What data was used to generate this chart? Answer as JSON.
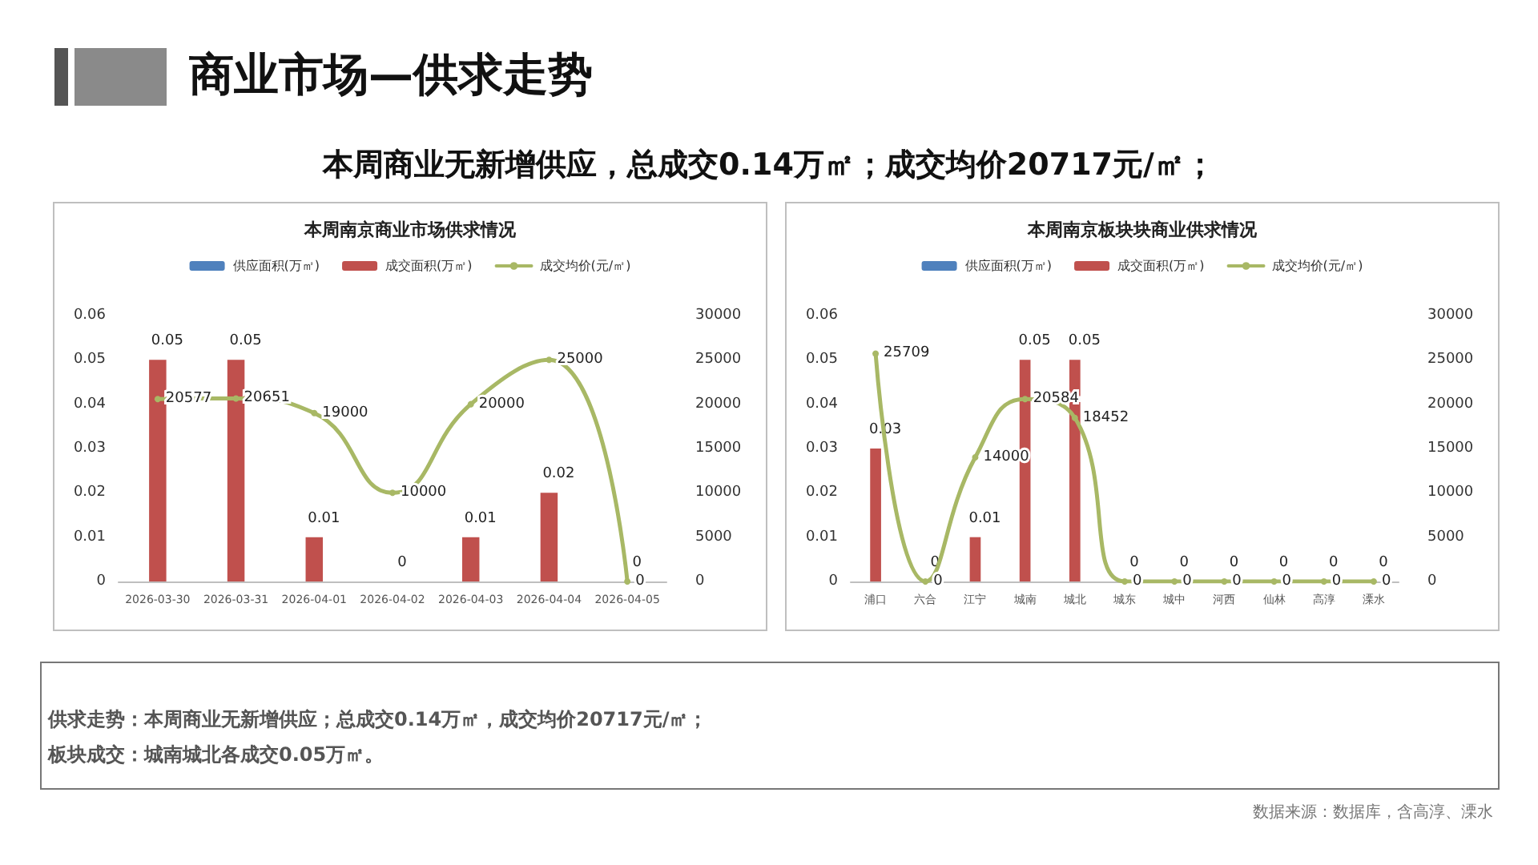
{
  "chart_data": [
    {
      "type": "other",
      "title": "商业市场—供求走势",
      "subtitle": "本周商业无新增供应，总成交0.14万㎡；成交均价20717元/㎡；",
      "annotations": [
        "供求走势：本周商业无新增供应；总成交0.14万㎡，成交均价20717元/㎡；",
        "板块成交：城南城北各成交0.05万㎡。",
        "数据来源：数据库，含高淳、溧水"
      ]
    },
    {
      "type": "bar",
      "title": "本周南京商业市场供求情况",
      "categories": [
        "2026-03-30",
        "2026-03-31",
        "2026-04-01",
        "2026-04-02",
        "2026-04-03",
        "2026-04-04",
        "2026-04-05"
      ],
      "series": [
        {
          "name": "供应面积(万㎡)",
          "color": "#4f81bd",
          "values": [
            null,
            null,
            null,
            null,
            null,
            null,
            null
          ]
        },
        {
          "name": "成交面积(万㎡)",
          "color": "#c0504d",
          "values": [
            0.05,
            0.05,
            0.01,
            0,
            0.01,
            0.02,
            0
          ]
        },
        {
          "name": "成交均价(元/㎡)",
          "type": "line",
          "axis": "y2",
          "color": "#a8b865",
          "values": [
            20577,
            20651,
            19000,
            10000,
            20000,
            25000,
            0
          ]
        }
      ],
      "ylim": [
        0,
        0.06
      ],
      "yticks": [
        0,
        0.01,
        0.02,
        0.03,
        0.04,
        0.05,
        0.06
      ],
      "y2lim": [
        0,
        30000
      ],
      "y2ticks": [
        0,
        5000,
        10000,
        15000,
        20000,
        25000,
        30000
      ],
      "grid": false,
      "legend": "top",
      "data_labels": true,
      "marker": "circle",
      "line_style": "solid"
    },
    {
      "type": "bar",
      "title": "本周南京板块块商业供求情况",
      "categories": [
        "浦口",
        "六合",
        "江宁",
        "城南",
        "城北",
        "城东",
        "城中",
        "河西",
        "仙林",
        "高淳",
        "溧水"
      ],
      "series": [
        {
          "name": "供应面积(万㎡)",
          "color": "#4f81bd",
          "values": [
            null,
            null,
            null,
            null,
            null,
            null,
            null,
            null,
            null,
            null,
            null
          ]
        },
        {
          "name": "成交面积(万㎡)",
          "color": "#c0504d",
          "values": [
            0.03,
            0,
            0.01,
            0.05,
            0.05,
            0,
            0,
            0,
            0,
            0,
            0
          ]
        },
        {
          "name": "成交均价(元/㎡)",
          "type": "line",
          "axis": "y2",
          "color": "#a8b865",
          "values": [
            25709,
            0,
            14000,
            20584,
            18452,
            0,
            0,
            0,
            0,
            0,
            0
          ]
        }
      ],
      "ylim": [
        0,
        0.06
      ],
      "yticks": [
        0,
        0.01,
        0.02,
        0.03,
        0.04,
        0.05,
        0.06
      ],
      "y2lim": [
        0,
        30000
      ],
      "y2ticks": [
        0,
        5000,
        10000,
        15000,
        20000,
        25000,
        30000
      ],
      "grid": false,
      "legend": "top",
      "data_labels": true,
      "marker": "circle",
      "line_style": "solid"
    }
  ]
}
